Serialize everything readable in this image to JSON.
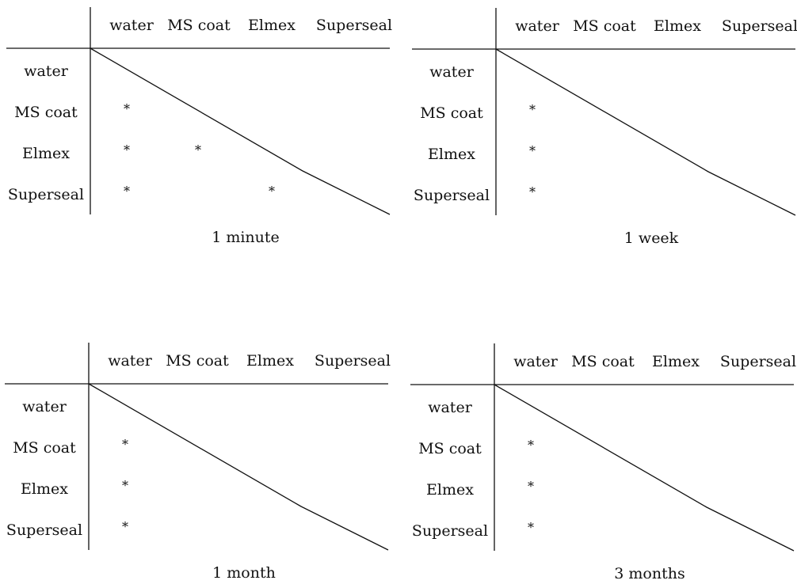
{
  "figure": {
    "columns": [
      "water",
      "MS coat",
      "Elmex",
      "Superseal"
    ],
    "rows": [
      "water",
      "MS coat",
      "Elmex",
      "Superseal"
    ],
    "mark_symbol": "*",
    "panels": [
      {
        "caption": "1 minute",
        "marks": [
          {
            "row": 1,
            "col": 0
          },
          {
            "row": 2,
            "col": 0
          },
          {
            "row": 2,
            "col": 1
          },
          {
            "row": 3,
            "col": 0
          },
          {
            "row": 3,
            "col": 2
          }
        ]
      },
      {
        "caption": "1 week",
        "marks": [
          {
            "row": 1,
            "col": 0
          },
          {
            "row": 2,
            "col": 0
          },
          {
            "row": 3,
            "col": 0
          }
        ]
      },
      {
        "caption": "1 month",
        "marks": [
          {
            "row": 1,
            "col": 0
          },
          {
            "row": 2,
            "col": 0
          },
          {
            "row": 3,
            "col": 0
          }
        ]
      },
      {
        "caption": "3 months",
        "marks": [
          {
            "row": 1,
            "col": 0
          },
          {
            "row": 2,
            "col": 0
          },
          {
            "row": 3,
            "col": 0
          }
        ]
      }
    ]
  }
}
